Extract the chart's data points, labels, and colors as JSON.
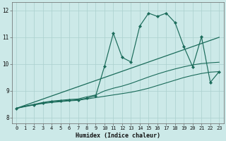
{
  "xlabel": "Humidex (Indice chaleur)",
  "xlim": [
    -0.5,
    23.5
  ],
  "ylim": [
    7.8,
    12.3
  ],
  "xticks": [
    0,
    1,
    2,
    3,
    4,
    5,
    6,
    7,
    8,
    9,
    10,
    11,
    12,
    13,
    14,
    15,
    16,
    17,
    18,
    19,
    20,
    21,
    22,
    23
  ],
  "yticks": [
    8,
    9,
    10,
    11,
    12
  ],
  "bg_color": "#cce9e8",
  "grid_color": "#aad0ce",
  "line_color": "#1a6b5a",
  "lines": [
    {
      "x": [
        0,
        1,
        2,
        3,
        4,
        5,
        6,
        7,
        8,
        9,
        10,
        11,
        12,
        13,
        14,
        15,
        16,
        17,
        18,
        19,
        20,
        21,
        22,
        23
      ],
      "y": [
        8.35,
        8.43,
        8.48,
        8.53,
        8.57,
        8.6,
        8.63,
        8.65,
        8.7,
        8.75,
        8.8,
        8.85,
        8.9,
        8.95,
        9.02,
        9.1,
        9.2,
        9.3,
        9.4,
        9.5,
        9.58,
        9.65,
        9.7,
        9.72
      ],
      "marker": false,
      "lw": 0.8
    },
    {
      "x": [
        0,
        1,
        2,
        3,
        4,
        5,
        6,
        7,
        8,
        9,
        10,
        11,
        12,
        13,
        14,
        15,
        16,
        17,
        18,
        19,
        20,
        21,
        22,
        23
      ],
      "y": [
        8.35,
        8.43,
        8.5,
        8.57,
        8.62,
        8.65,
        8.68,
        8.7,
        8.78,
        8.85,
        9.0,
        9.1,
        9.18,
        9.28,
        9.4,
        9.52,
        9.63,
        9.73,
        9.82,
        9.9,
        9.97,
        10.02,
        10.05,
        10.07
      ],
      "marker": false,
      "lw": 0.8
    },
    {
      "x": [
        0,
        2,
        3,
        4,
        5,
        6,
        7,
        8,
        9,
        10,
        11,
        12,
        13,
        14,
        15,
        16,
        17,
        18,
        19,
        20,
        21,
        22,
        23
      ],
      "y": [
        8.35,
        8.48,
        8.55,
        8.6,
        8.62,
        8.65,
        8.67,
        8.73,
        8.82,
        9.92,
        11.15,
        10.25,
        10.08,
        11.42,
        11.9,
        11.78,
        11.9,
        11.55,
        10.65,
        9.9,
        11.02,
        9.32,
        9.72
      ],
      "marker": true,
      "lw": 0.85
    },
    {
      "x": [
        0,
        23
      ],
      "y": [
        8.35,
        11.0
      ],
      "marker": false,
      "lw": 0.9
    }
  ]
}
